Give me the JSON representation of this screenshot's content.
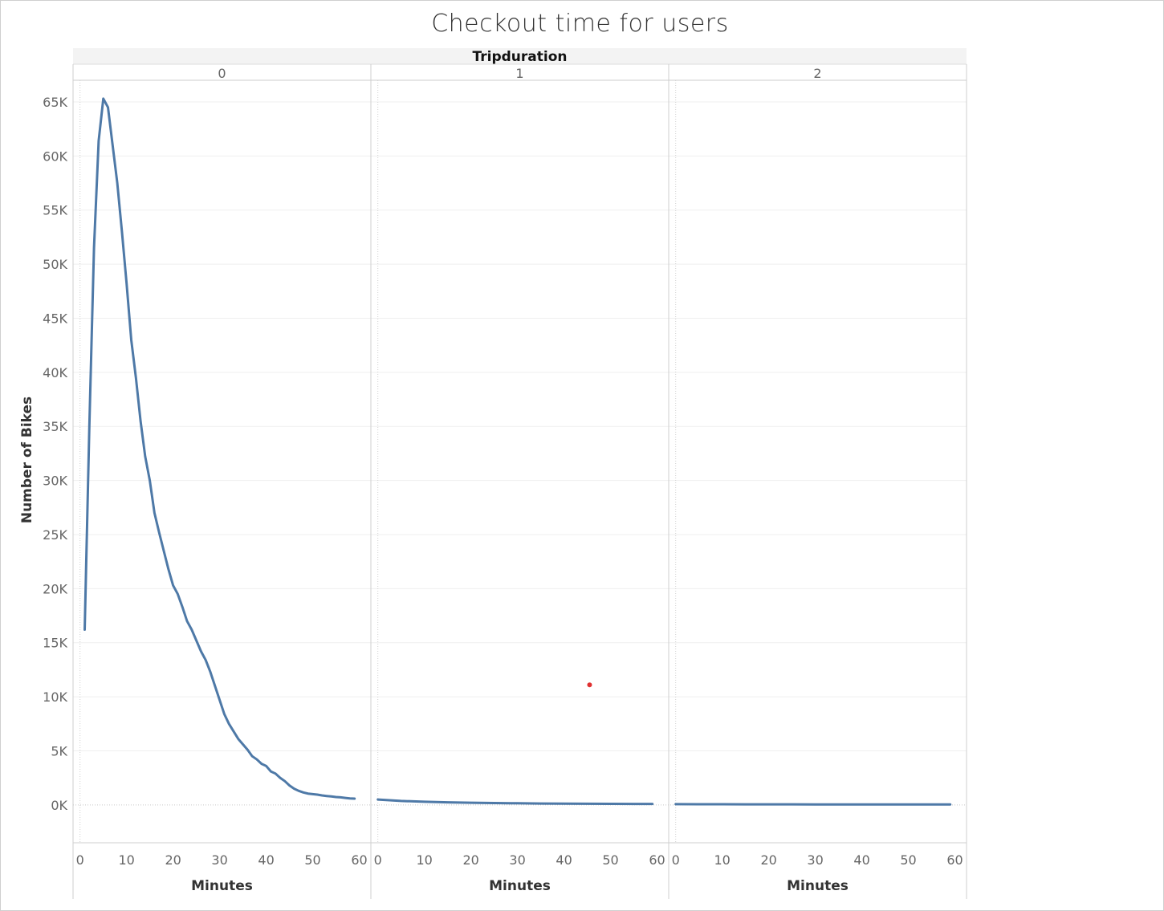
{
  "chart_data": {
    "type": "line",
    "title": "Checkout time for users",
    "column_header": "Tripduration",
    "ylabel": "Number of Bikes",
    "xlabel": "Minutes",
    "ylim": [
      -3500,
      67000
    ],
    "xlim": [
      -1.5,
      62.5
    ],
    "y_ticks": [
      0,
      5000,
      10000,
      15000,
      20000,
      25000,
      30000,
      35000,
      40000,
      45000,
      50000,
      55000,
      60000,
      65000
    ],
    "y_tick_labels": [
      "0K",
      "5K",
      "10K",
      "15K",
      "20K",
      "25K",
      "30K",
      "35K",
      "40K",
      "45K",
      "50K",
      "55K",
      "60K",
      "65K"
    ],
    "x_ticks": [
      0,
      10,
      20,
      30,
      40,
      50,
      60
    ],
    "x_tick_labels": [
      "0",
      "10",
      "20",
      "30",
      "40",
      "50",
      "60"
    ],
    "line_color": "#4e79a7",
    "marker_color": "#e03131",
    "panels": [
      {
        "header": "0",
        "x": [
          1,
          2,
          3,
          4,
          5,
          6,
          7,
          8,
          9,
          10,
          11,
          12,
          13,
          14,
          15,
          16,
          17,
          18,
          19,
          20,
          21,
          22,
          23,
          24,
          25,
          26,
          27,
          28,
          29,
          30,
          31,
          32,
          33,
          34,
          35,
          36,
          37,
          38,
          39,
          40,
          41,
          42,
          43,
          44,
          45,
          46,
          47,
          48,
          49,
          50,
          51,
          52,
          53,
          54,
          55,
          56,
          57,
          58,
          59
        ],
        "y": [
          16200,
          35000,
          51500,
          61400,
          65300,
          64500,
          61000,
          57500,
          53000,
          48200,
          43000,
          39500,
          35500,
          32200,
          30000,
          27000,
          25200,
          23500,
          21800,
          20300,
          19500,
          18300,
          17000,
          16200,
          15200,
          14200,
          13400,
          12300,
          11000,
          9700,
          8400,
          7500,
          6800,
          6100,
          5600,
          5100,
          4500,
          4200,
          3800,
          3600,
          3100,
          2900,
          2500,
          2200,
          1800,
          1500,
          1300,
          1150,
          1050,
          1000,
          950,
          880,
          830,
          780,
          730,
          700,
          650,
          600,
          580
        ]
      },
      {
        "header": "1",
        "x": [
          0,
          5,
          10,
          15,
          20,
          25,
          30,
          35,
          40,
          45,
          50,
          55,
          59
        ],
        "y": [
          500,
          370,
          290,
          240,
          200,
          170,
          150,
          130,
          120,
          110,
          100,
          95,
          90
        ]
      },
      {
        "header": "2",
        "x": [
          0,
          5,
          10,
          15,
          20,
          25,
          30,
          35,
          40,
          45,
          50,
          55,
          59
        ],
        "y": [
          70,
          65,
          60,
          58,
          55,
          52,
          50,
          48,
          46,
          45,
          44,
          43,
          42
        ]
      }
    ],
    "markers": [
      {
        "panel": 1,
        "x": 45.5,
        "y": 11100
      }
    ]
  }
}
